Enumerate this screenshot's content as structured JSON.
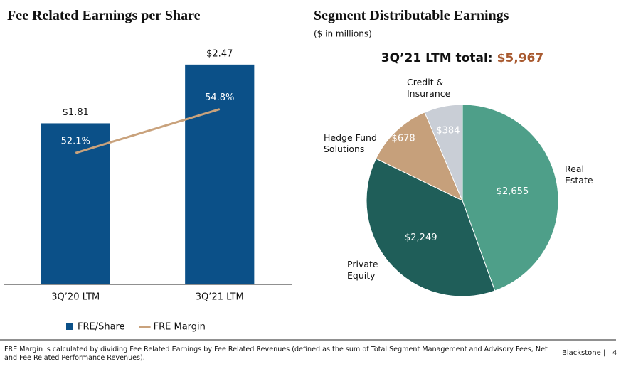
{
  "chart_data": [
    {
      "type": "bar",
      "title": "Fee Related Earnings per Share",
      "categories": [
        "3Q’20 LTM",
        "3Q’21 LTM"
      ],
      "ylim": [
        0,
        3.1
      ],
      "y2lim": [
        44,
        61
      ],
      "series": [
        {
          "name": "FRE/Share",
          "type": "bar",
          "color": "#0b5088",
          "values": [
            1.81,
            2.47
          ],
          "value_labels": [
            "$1.81",
            "$2.47"
          ]
        },
        {
          "name": "FRE Margin",
          "type": "line",
          "axis": "y2",
          "color": "#c9a27c",
          "values": [
            52.1,
            54.8
          ],
          "value_labels": [
            "52.1%",
            "54.8%"
          ]
        }
      ]
    },
    {
      "type": "pie",
      "title": "Segment Distributable Earnings",
      "subtitle": "($ in millions)",
      "total_label": "3Q’21 LTM total:",
      "total": 5967,
      "total_value_label": "$5,967",
      "categories": [
        "Real Estate",
        "Private Equity",
        "Hedge Fund Solutions",
        "Credit & Insurance"
      ],
      "values": [
        2655,
        2249,
        678,
        384
      ],
      "value_labels": [
        "$2,655",
        "$2,249",
        "$678",
        "$384"
      ],
      "colors": [
        "#4e9f89",
        "#1f5e59",
        "#c6a07b",
        "#c9ced6"
      ]
    }
  ],
  "footnote": "FRE Margin is calculated by dividing Fee Related Earnings by Fee Related Revenues (defined as the sum of Total Segment Management and Advisory Fees, Net and Fee Related Performance Revenues).",
  "brand": "Blackstone",
  "page_number": 4
}
